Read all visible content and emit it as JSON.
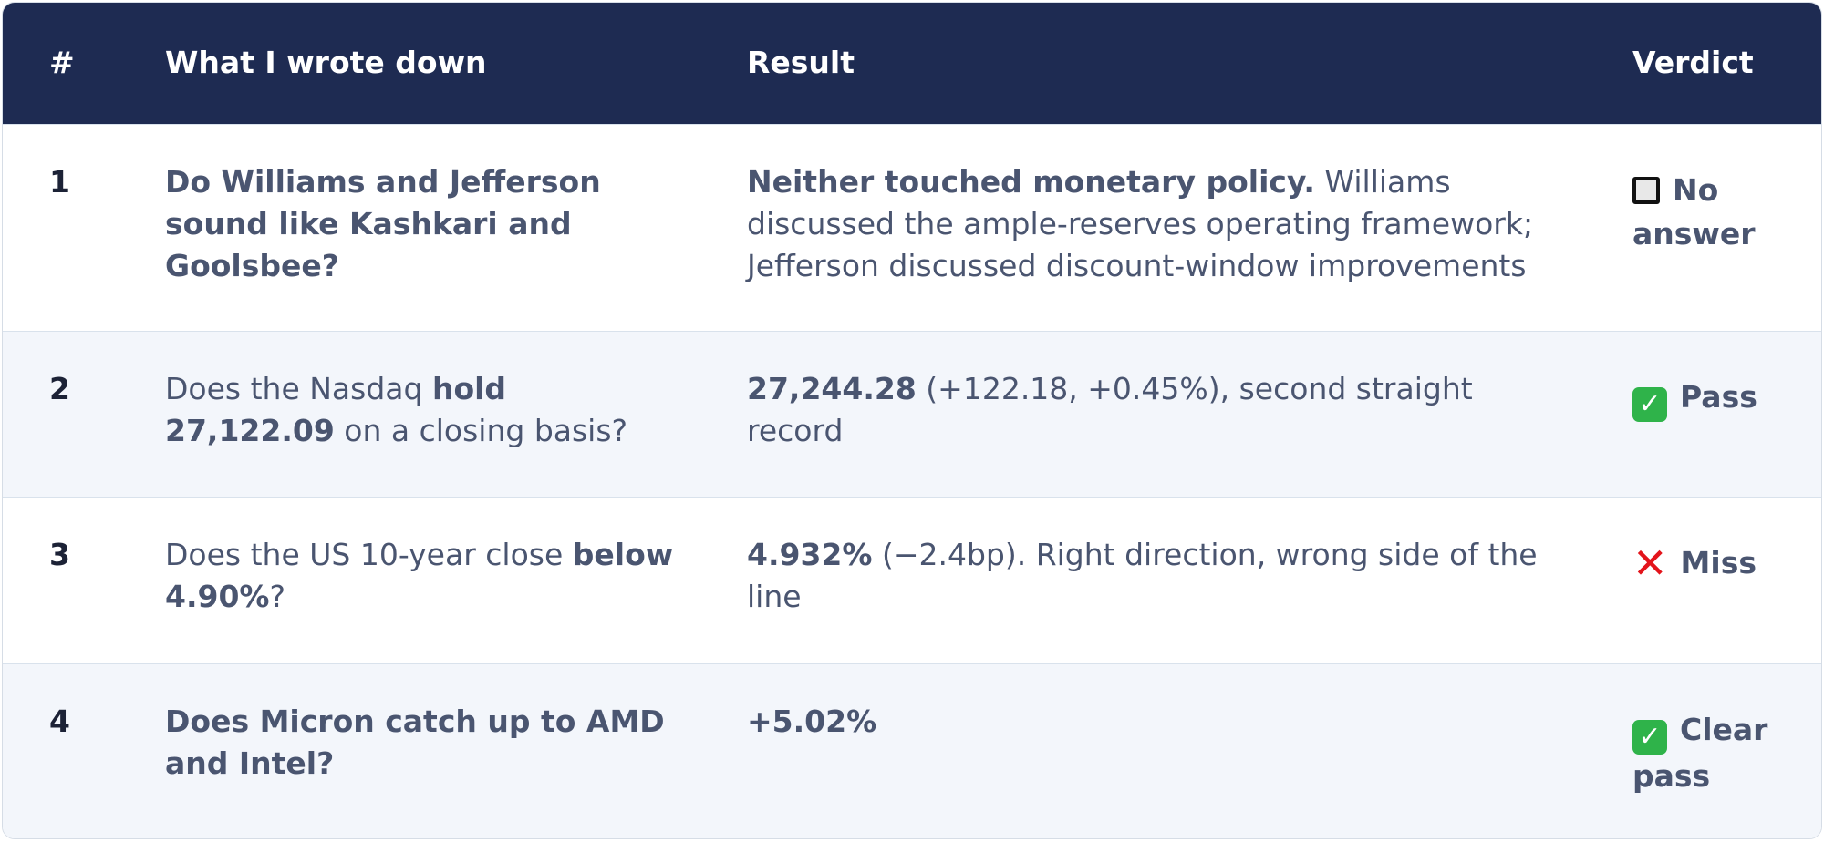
{
  "table": {
    "headers": {
      "num": "#",
      "question": "What I wrote down",
      "result": "Result",
      "verdict": "Verdict"
    },
    "rows": [
      {
        "num": "1",
        "question": [
          {
            "t": "Do Williams and Jefferson sound like Kashkari and Goolsbee?",
            "b": true
          }
        ],
        "result": [
          {
            "t": "Neither touched monetary policy.",
            "b": true
          },
          {
            "t": " Williams discussed the ample-reserves operating framework; Jefferson discussed discount-window improvements",
            "b": false
          }
        ],
        "verdict_icon": "ballot-box-icon",
        "verdict": "No answer"
      },
      {
        "num": "2",
        "question": [
          {
            "t": "Does the Nasdaq ",
            "b": false
          },
          {
            "t": "hold 27,122.09",
            "b": true
          },
          {
            "t": " on a closing basis?",
            "b": false
          }
        ],
        "result": [
          {
            "t": "27,244.28",
            "b": true
          },
          {
            "t": " (+122.18, +0.45%), second straight record",
            "b": false
          }
        ],
        "verdict_icon": "check-icon",
        "verdict": "Pass"
      },
      {
        "num": "3",
        "question": [
          {
            "t": "Does the US 10-year close ",
            "b": false
          },
          {
            "t": "below 4.90%",
            "b": true
          },
          {
            "t": "?",
            "b": false
          }
        ],
        "result": [
          {
            "t": "4.932%",
            "b": true
          },
          {
            "t": " (−2.4bp). Right direction, wrong side of the line",
            "b": false
          }
        ],
        "verdict_icon": "cross-icon",
        "verdict": "Miss"
      },
      {
        "num": "4",
        "question": [
          {
            "t": "Does Micron catch up to AMD and Intel?",
            "b": true
          }
        ],
        "result": [
          {
            "t": "+5.02%",
            "b": true
          }
        ],
        "verdict_icon": "check-icon",
        "verdict": "Clear pass"
      }
    ]
  }
}
